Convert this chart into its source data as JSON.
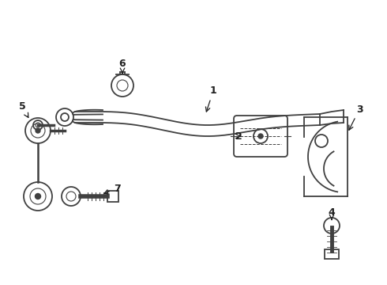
{
  "bg_color": "#ffffff",
  "line_color": "#404040",
  "label_color": "#202020",
  "fig_width": 4.9,
  "fig_height": 3.6,
  "dpi": 100
}
